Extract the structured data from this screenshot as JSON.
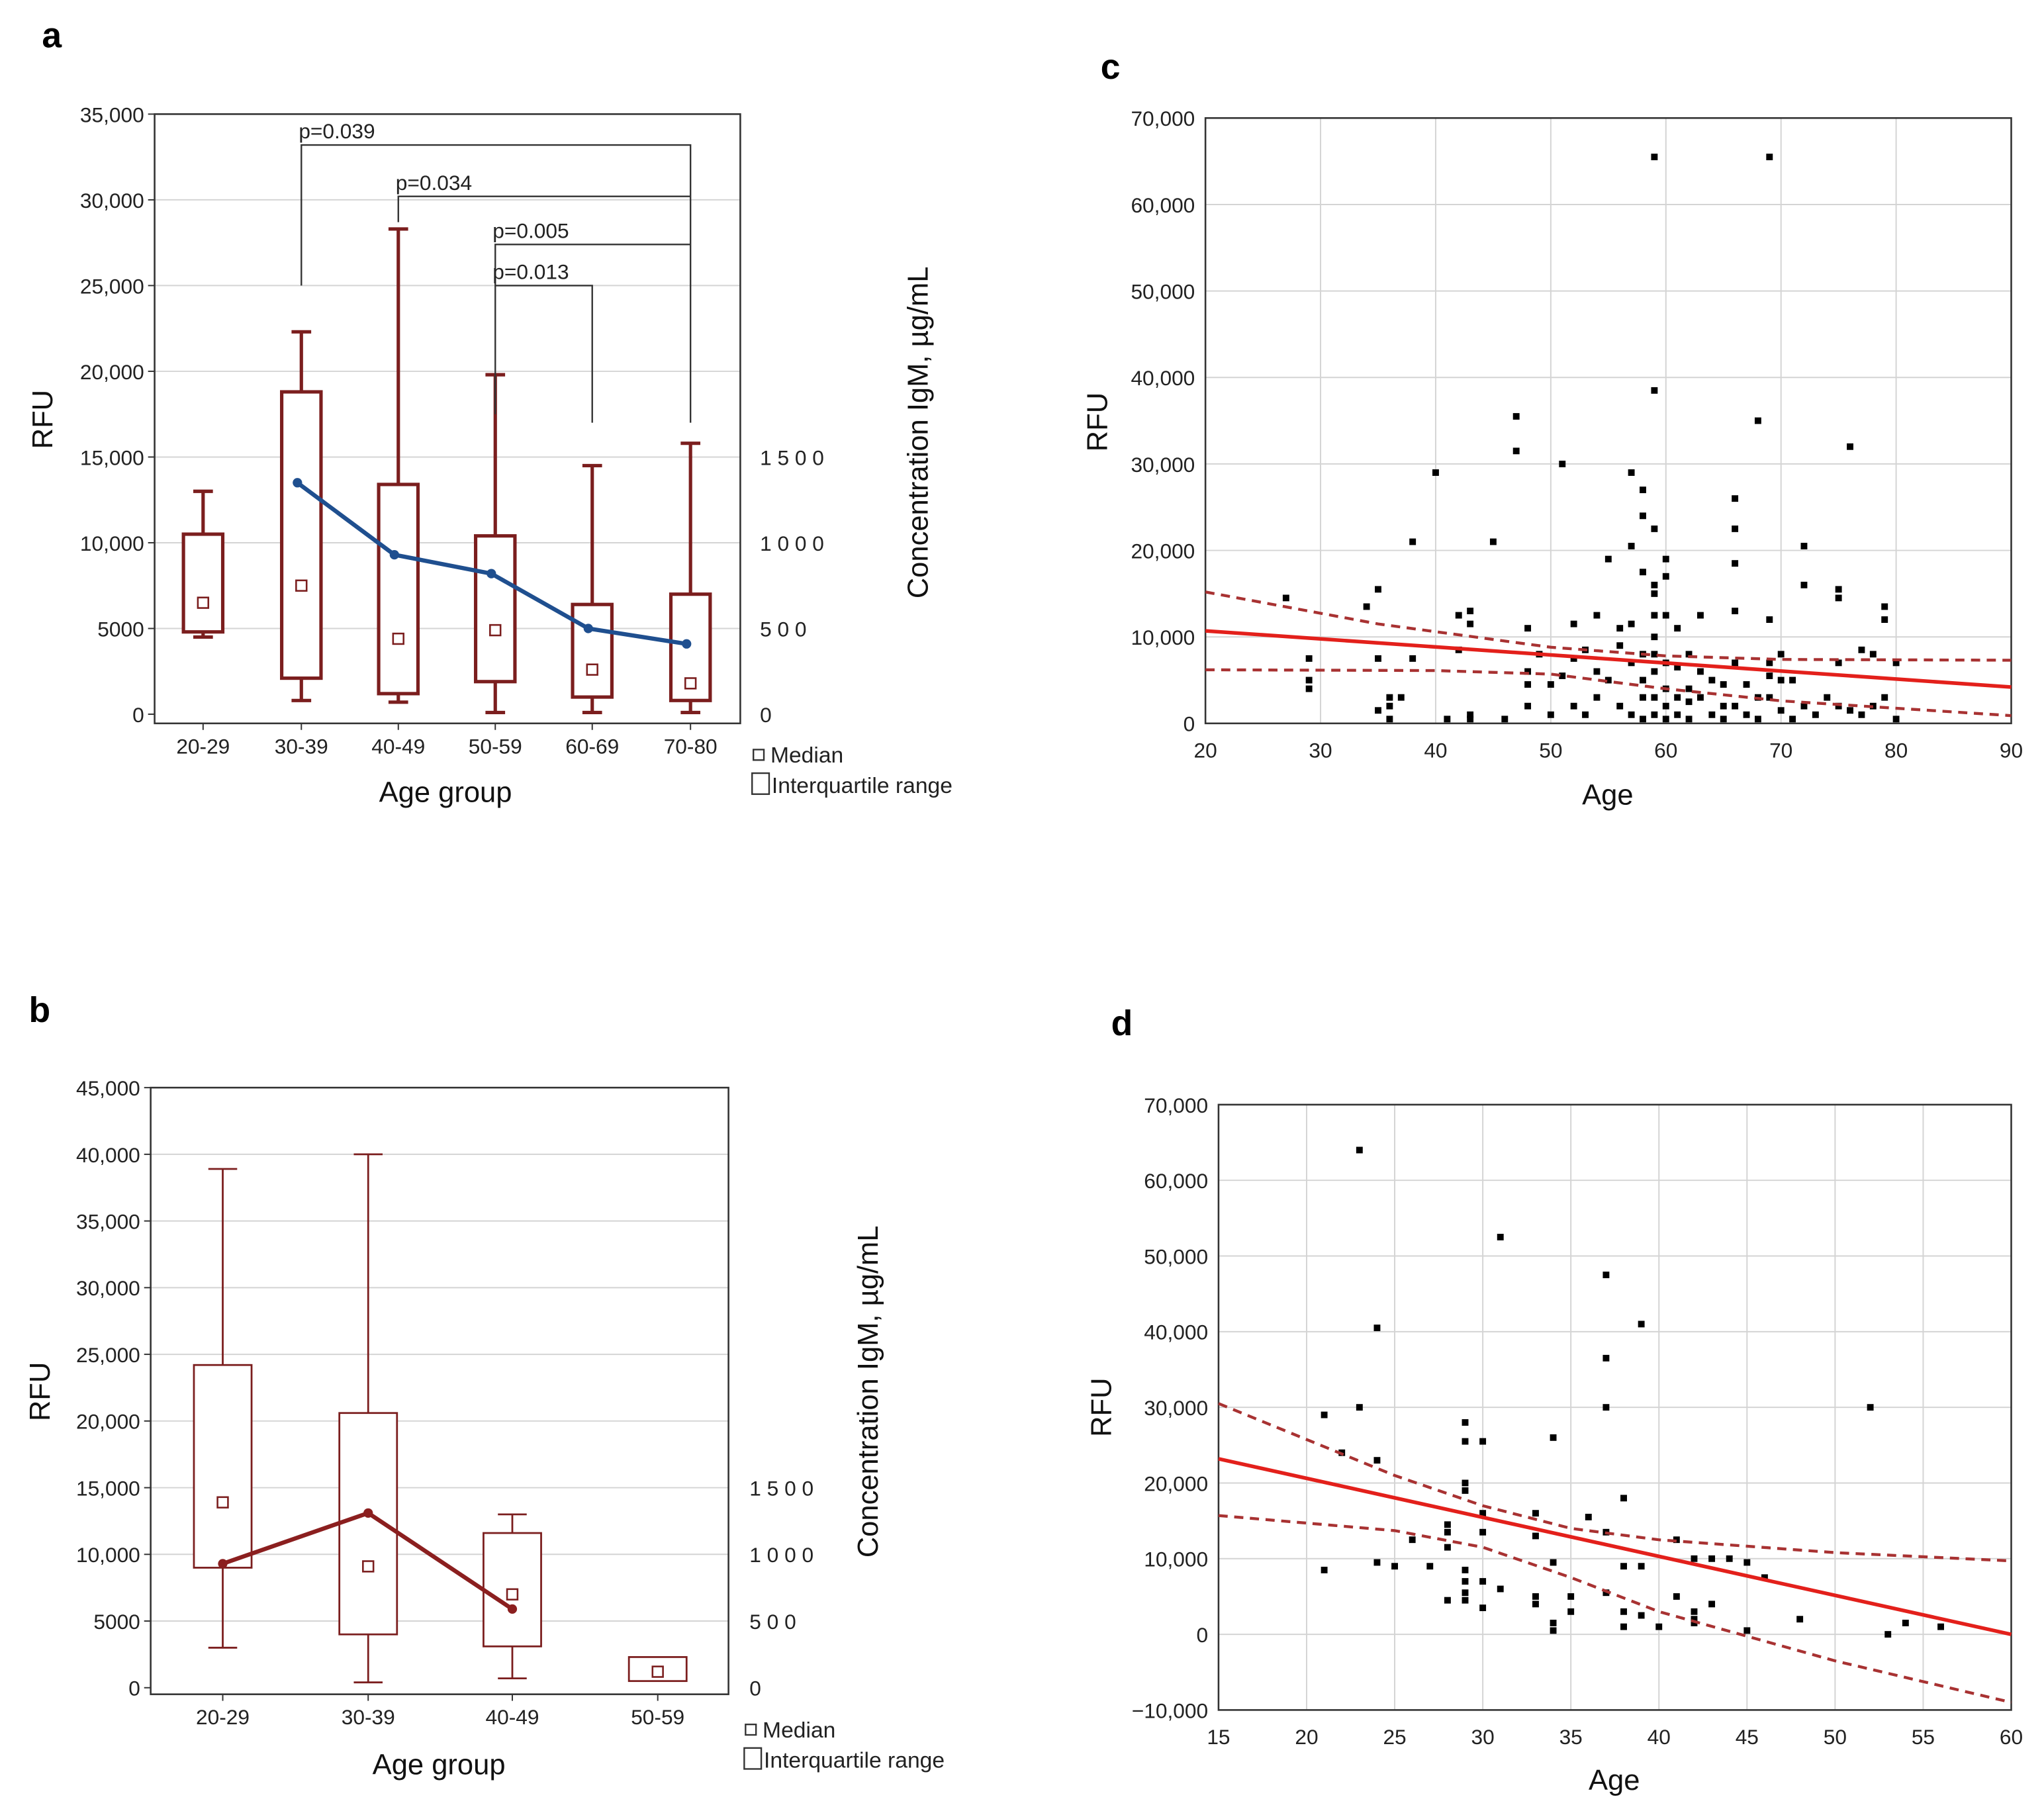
{
  "chart_data": [
    {
      "panel": "a",
      "type": "box",
      "xlabel": "Age group",
      "ylabel": "RFU",
      "y2label": "Concentration IgM, µg/mL",
      "ylim": [
        0,
        35000
      ],
      "yticks": [
        0,
        5000,
        10000,
        15000,
        20000,
        25000,
        30000,
        35000
      ],
      "ytick_labels": [
        "0",
        "5000",
        "10,000",
        "15,000",
        "20,000",
        "25,000",
        "30,000",
        "35,000"
      ],
      "y2ticks": [
        0,
        500,
        1000,
        1500
      ],
      "y2tick_labels": [
        "0",
        "5 0 0",
        "1 0 0 0",
        "1 5 0 0"
      ],
      "categories": [
        "20-29",
        "30-39",
        "40-49",
        "50-59",
        "60-69",
        "70-80"
      ],
      "boxes": [
        {
          "whisker_low": 4500,
          "q1": 4800,
          "median": 6500,
          "q3": 10500,
          "whisker_high": 13000
        },
        {
          "whisker_low": 800,
          "q1": 2100,
          "median": 7500,
          "q3": 18800,
          "whisker_high": 22300
        },
        {
          "whisker_low": 700,
          "q1": 1200,
          "median": 4400,
          "q3": 13400,
          "whisker_high": 28300
        },
        {
          "whisker_low": 100,
          "q1": 1900,
          "median": 4900,
          "q3": 10400,
          "whisker_high": 19800
        },
        {
          "whisker_low": 100,
          "q1": 1000,
          "median": 2600,
          "q3": 6400,
          "whisker_high": 14500
        },
        {
          "whisker_low": 100,
          "q1": 800,
          "median": 1800,
          "q3": 7000,
          "whisker_high": 15800
        }
      ],
      "concentration_series": [
        null,
        1350,
        930,
        820,
        500,
        410
      ],
      "annotations": [
        {
          "label": "p=0.039",
          "from": 1,
          "to": 5,
          "bar": 33200,
          "from_drop": 25000,
          "to_drop": 17000
        },
        {
          "label": "p=0.034",
          "from": 2,
          "to": 5,
          "bar": 30200,
          "from_drop": 28700,
          "to_drop": 30200
        },
        {
          "label": "p=0.005",
          "from": 3,
          "to": 5,
          "bar": 27400,
          "from_drop": 17500,
          "to_drop": 27400
        },
        {
          "label": "p=0.013",
          "from": 3,
          "to": 4,
          "bar": 25000,
          "from_drop": 25000,
          "to_drop": 17000
        }
      ],
      "legend": [
        "Median",
        "Interquartile range"
      ],
      "colors": {
        "box": "#7b1e1e",
        "line": "#1f4f8f"
      }
    },
    {
      "panel": "b",
      "type": "box",
      "xlabel": "Age group",
      "ylabel": "RFU",
      "y2label": "Concentration IgM, µg/mL",
      "ylim": [
        0,
        45000
      ],
      "yticks": [
        0,
        5000,
        10000,
        15000,
        20000,
        25000,
        30000,
        35000,
        40000,
        45000
      ],
      "ytick_labels": [
        "0",
        "5000",
        "10,000",
        "15,000",
        "20,000",
        "25,000",
        "30,000",
        "35,000",
        "40,000",
        "45,000"
      ],
      "y2ticks": [
        0,
        500,
        1000,
        1500
      ],
      "y2tick_labels": [
        "0",
        "5 0 0",
        "1 0 0 0",
        "1 5 0 0"
      ],
      "categories": [
        "20-29",
        "30-39",
        "40-49",
        "50-59"
      ],
      "boxes": [
        {
          "whisker_low": 3000,
          "q1": 9000,
          "median": 13900,
          "q3": 24200,
          "whisker_high": 38900
        },
        {
          "whisker_low": 400,
          "q1": 4000,
          "median": 9100,
          "q3": 20600,
          "whisker_high": 40000
        },
        {
          "whisker_low": 700,
          "q1": 3100,
          "median": 7000,
          "q3": 11600,
          "whisker_high": 13000
        },
        {
          "whisker_low": 500,
          "q1": 500,
          "median": 1200,
          "q3": 2300,
          "whisker_high": 2300
        }
      ],
      "concentration_series": [
        930,
        1310,
        590,
        null
      ],
      "annotations": [],
      "legend": [
        "Median",
        "Interquartile range"
      ],
      "colors": {
        "box": "#7b1e1e",
        "line": "#8b1f1f"
      }
    },
    {
      "panel": "c",
      "type": "scatter",
      "xlabel": "Age",
      "ylabel": "RFU",
      "xlim": [
        20,
        90
      ],
      "ylim": [
        0,
        70000
      ],
      "xticks": [
        20,
        30,
        40,
        50,
        60,
        70,
        80,
        90
      ],
      "xtick_labels": [
        "20",
        "30",
        "40",
        "50",
        "60",
        "70",
        "80",
        "90"
      ],
      "yticks": [
        0,
        10000,
        20000,
        30000,
        40000,
        50000,
        60000,
        70000
      ],
      "ytick_labels": [
        "0",
        "10,000",
        "20,000",
        "30,000",
        "40,000",
        "50,000",
        "60,000",
        "70,000"
      ],
      "grid": true,
      "regression": [
        [
          20,
          10700
        ],
        [
          90,
          4200
        ]
      ],
      "ci_upper": [
        [
          20,
          15200
        ],
        [
          35,
          11500
        ],
        [
          50,
          8800
        ],
        [
          60,
          7800
        ],
        [
          70,
          7400
        ],
        [
          90,
          7300
        ]
      ],
      "ci_lower": [
        [
          20,
          6200
        ],
        [
          40,
          6100
        ],
        [
          50,
          5700
        ],
        [
          60,
          4000
        ],
        [
          70,
          2600
        ],
        [
          90,
          900
        ]
      ],
      "points": [
        [
          59,
          65500
        ],
        [
          69,
          65500
        ],
        [
          59,
          38500
        ],
        [
          47,
          35500
        ],
        [
          47,
          31500
        ],
        [
          51,
          30000
        ],
        [
          40,
          29000
        ],
        [
          68,
          35000
        ],
        [
          76,
          32000
        ],
        [
          57,
          29000
        ],
        [
          58,
          27000
        ],
        [
          58,
          24000
        ],
        [
          59,
          22500
        ],
        [
          66,
          26000
        ],
        [
          66,
          22500
        ],
        [
          38,
          21000
        ],
        [
          45,
          21000
        ],
        [
          57,
          20500
        ],
        [
          72,
          20500
        ],
        [
          60,
          19000
        ],
        [
          55,
          19000
        ],
        [
          66,
          18500
        ],
        [
          58,
          17500
        ],
        [
          60,
          17000
        ],
        [
          59,
          16000
        ],
        [
          59,
          15000
        ],
        [
          72,
          16000
        ],
        [
          75,
          15500
        ],
        [
          75,
          14500
        ],
        [
          27,
          14500
        ],
        [
          35,
          15500
        ],
        [
          34,
          13500
        ],
        [
          66,
          13000
        ],
        [
          79,
          13500
        ],
        [
          79,
          12000
        ],
        [
          42,
          12500
        ],
        [
          43,
          13000
        ],
        [
          43,
          11500
        ],
        [
          54,
          12500
        ],
        [
          59,
          12500
        ],
        [
          60,
          12500
        ],
        [
          63,
          12500
        ],
        [
          69,
          12000
        ],
        [
          48,
          11000
        ],
        [
          52,
          11500
        ],
        [
          56,
          11000
        ],
        [
          57,
          11500
        ],
        [
          61,
          11000
        ],
        [
          42,
          8500
        ],
        [
          59,
          10000
        ],
        [
          38,
          7500
        ],
        [
          35,
          7500
        ],
        [
          29,
          7500
        ],
        [
          29,
          5000
        ],
        [
          29,
          4000
        ],
        [
          36,
          3000
        ],
        [
          36,
          2000
        ],
        [
          36,
          500
        ],
        [
          35,
          1500
        ],
        [
          37,
          3000
        ],
        [
          41,
          500
        ],
        [
          43,
          1000
        ],
        [
          43,
          500
        ],
        [
          46,
          500
        ],
        [
          48,
          6000
        ],
        [
          48,
          4500
        ],
        [
          48,
          2000
        ],
        [
          49,
          8000
        ],
        [
          50,
          4500
        ],
        [
          50,
          1000
        ],
        [
          51,
          5500
        ],
        [
          52,
          7500
        ],
        [
          52,
          2000
        ],
        [
          53,
          8500
        ],
        [
          53,
          1000
        ],
        [
          54,
          6000
        ],
        [
          54,
          3000
        ],
        [
          55,
          5000
        ],
        [
          56,
          9000
        ],
        [
          56,
          2000
        ],
        [
          57,
          7000
        ],
        [
          57,
          1000
        ],
        [
          58,
          8000
        ],
        [
          58,
          5000
        ],
        [
          58,
          3000
        ],
        [
          58,
          500
        ],
        [
          59,
          8000
        ],
        [
          59,
          6000
        ],
        [
          59,
          3000
        ],
        [
          59,
          1000
        ],
        [
          60,
          7000
        ],
        [
          60,
          4000
        ],
        [
          60,
          2000
        ],
        [
          60,
          500
        ],
        [
          61,
          6500
        ],
        [
          61,
          3000
        ],
        [
          61,
          1000
        ],
        [
          62,
          8000
        ],
        [
          62,
          4000
        ],
        [
          62,
          2500
        ],
        [
          62,
          500
        ],
        [
          63,
          6000
        ],
        [
          63,
          3000
        ],
        [
          64,
          5000
        ],
        [
          64,
          1000
        ],
        [
          65,
          4500
        ],
        [
          65,
          2000
        ],
        [
          65,
          500
        ],
        [
          66,
          7000
        ],
        [
          66,
          2000
        ],
        [
          67,
          4500
        ],
        [
          67,
          1000
        ],
        [
          68,
          3000
        ],
        [
          68,
          500
        ],
        [
          69,
          7000
        ],
        [
          69,
          5500
        ],
        [
          69,
          3000
        ],
        [
          70,
          8000
        ],
        [
          70,
          5000
        ],
        [
          70,
          1500
        ],
        [
          71,
          5000
        ],
        [
          71,
          500
        ],
        [
          72,
          2000
        ],
        [
          73,
          1000
        ],
        [
          74,
          3000
        ],
        [
          75,
          7000
        ],
        [
          75,
          2000
        ],
        [
          76,
          1500
        ],
        [
          77,
          8500
        ],
        [
          77,
          1000
        ],
        [
          78,
          8000
        ],
        [
          78,
          2000
        ],
        [
          79,
          3000
        ],
        [
          80,
          7000
        ],
        [
          80,
          500
        ]
      ],
      "colors": {
        "points": "#000000",
        "regression": "#e3201b",
        "ci": "#a83232"
      }
    },
    {
      "panel": "d",
      "type": "scatter",
      "xlabel": "Age",
      "ylabel": "RFU",
      "xlim": [
        15,
        60
      ],
      "ylim": [
        -10000,
        70000
      ],
      "xticks": [
        15,
        20,
        25,
        30,
        35,
        40,
        45,
        50,
        55,
        60
      ],
      "xtick_labels": [
        "15",
        "20",
        "25",
        "30",
        "35",
        "40",
        "45",
        "50",
        "55",
        "60"
      ],
      "yticks": [
        -10000,
        0,
        10000,
        20000,
        30000,
        40000,
        50000,
        60000,
        70000
      ],
      "ytick_labels": [
        "−10,000",
        "0",
        "10,000",
        "20,000",
        "30,000",
        "40,000",
        "50,000",
        "60,000",
        "70,000"
      ],
      "grid": true,
      "regression": [
        [
          15,
          23200
        ],
        [
          60,
          0
        ]
      ],
      "ci_upper": [
        [
          15,
          30500
        ],
        [
          25,
          21000
        ],
        [
          30,
          17000
        ],
        [
          35,
          14000
        ],
        [
          40,
          12500
        ],
        [
          50,
          10800
        ],
        [
          60,
          9700
        ]
      ],
      "ci_lower": [
        [
          15,
          15700
        ],
        [
          25,
          13700
        ],
        [
          30,
          11500
        ],
        [
          35,
          7500
        ],
        [
          40,
          3000
        ],
        [
          50,
          -3500
        ],
        [
          60,
          -9000
        ]
      ],
      "points": [
        [
          21,
          29000
        ],
        [
          21,
          8500
        ],
        [
          22,
          24000
        ],
        [
          23,
          64000
        ],
        [
          23,
          30000
        ],
        [
          24,
          40500
        ],
        [
          24,
          23000
        ],
        [
          24,
          9500
        ],
        [
          25,
          9000
        ],
        [
          26,
          12500
        ],
        [
          27,
          9000
        ],
        [
          28,
          14500
        ],
        [
          28,
          13500
        ],
        [
          28,
          11500
        ],
        [
          28,
          4500
        ],
        [
          29,
          28000
        ],
        [
          29,
          25500
        ],
        [
          29,
          20000
        ],
        [
          29,
          19000
        ],
        [
          29,
          8500
        ],
        [
          29,
          7000
        ],
        [
          29,
          5500
        ],
        [
          29,
          4500
        ],
        [
          30,
          25500
        ],
        [
          30,
          16000
        ],
        [
          30,
          13500
        ],
        [
          30,
          7000
        ],
        [
          30,
          3500
        ],
        [
          31,
          52500
        ],
        [
          31,
          6000
        ],
        [
          33,
          16000
        ],
        [
          33,
          13000
        ],
        [
          33,
          5000
        ],
        [
          33,
          4000
        ],
        [
          34,
          26000
        ],
        [
          34,
          9500
        ],
        [
          34,
          1500
        ],
        [
          34,
          500
        ],
        [
          35,
          5000
        ],
        [
          35,
          3000
        ],
        [
          36,
          15500
        ],
        [
          37,
          47500
        ],
        [
          37,
          36500
        ],
        [
          37,
          30000
        ],
        [
          37,
          13500
        ],
        [
          37,
          5500
        ],
        [
          38,
          18000
        ],
        [
          38,
          9000
        ],
        [
          38,
          3000
        ],
        [
          38,
          1000
        ],
        [
          39,
          41000
        ],
        [
          39,
          9000
        ],
        [
          39,
          2500
        ],
        [
          40,
          1000
        ],
        [
          41,
          12500
        ],
        [
          41,
          5000
        ],
        [
          42,
          10000
        ],
        [
          42,
          3000
        ],
        [
          42,
          2000
        ],
        [
          42,
          1500
        ],
        [
          43,
          10000
        ],
        [
          43,
          4000
        ],
        [
          44,
          10000
        ],
        [
          45,
          9500
        ],
        [
          45,
          500
        ],
        [
          46,
          7500
        ],
        [
          48,
          2000
        ],
        [
          52,
          30000
        ],
        [
          53,
          0
        ],
        [
          54,
          1500
        ],
        [
          56,
          1000
        ]
      ],
      "colors": {
        "points": "#000000",
        "regression": "#e3201b",
        "ci": "#a83232"
      }
    }
  ]
}
